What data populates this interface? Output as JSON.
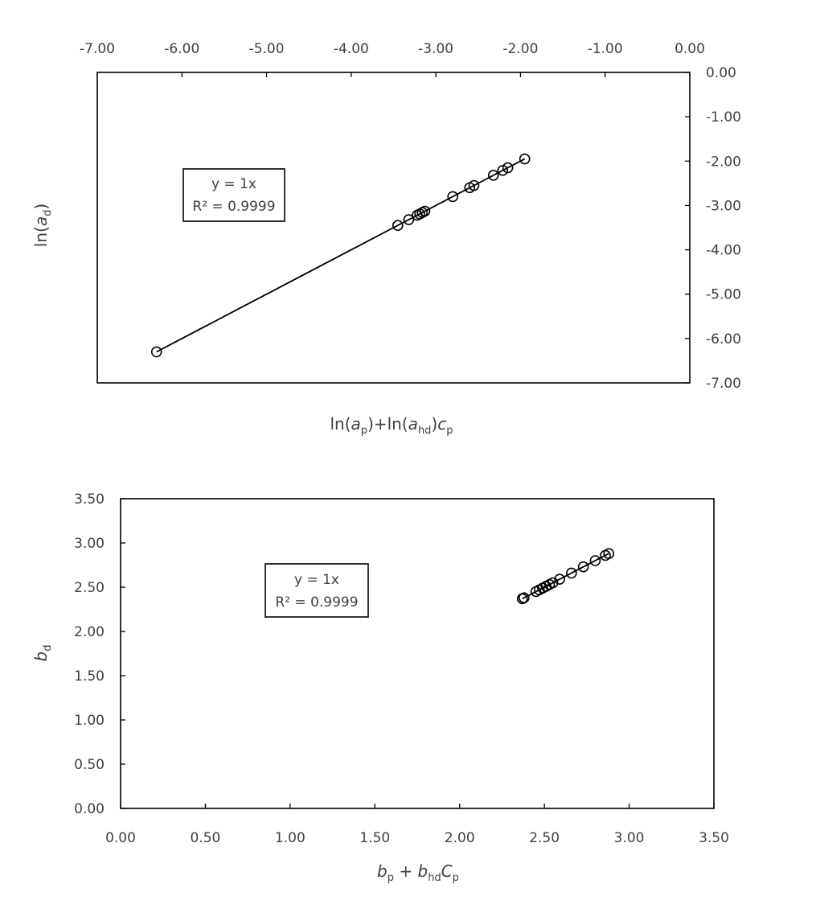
{
  "chart_data": [
    {
      "type": "scatter",
      "title": "",
      "xlabel": "ln(ap)+ln(ahd)cp",
      "xlabel_parts": {
        "a1": "ln(",
        "a1v": "a",
        "a1s": "p",
        "a2": ")+ln(",
        "a2v": "a",
        "a2s": "hd",
        "a3": ")",
        "a3v": "c",
        "a3s": "p"
      },
      "ylabel": "ln(ad)",
      "ylabel_parts": {
        "p1": "ln(",
        "v": "a",
        "s": "d",
        "p2": ")"
      },
      "xlim": [
        -7,
        0
      ],
      "ylim": [
        -7,
        0
      ],
      "x_axis_position": "top",
      "y_axis_position": "right",
      "x_ticks": [
        "-7.00",
        "-6.00",
        "-5.00",
        "-4.00",
        "-3.00",
        "-2.00",
        "-1.00",
        "0.00"
      ],
      "y_ticks": [
        "0.00",
        "-1.00",
        "-2.00",
        "-3.00",
        "-4.00",
        "-5.00",
        "-6.00",
        "-7.00"
      ],
      "grid": false,
      "trendline": {
        "slope": 1,
        "intercept": 0,
        "equation": "y = 1x",
        "r2_label": "R² = 0.9999"
      },
      "series": [
        {
          "x": [
            -6.3,
            -3.45,
            -3.32,
            -3.22,
            -3.19,
            -3.16,
            -3.13,
            -2.8,
            -2.6,
            -2.55,
            -2.32,
            -2.21,
            -2.15,
            -1.95
          ],
          "y": [
            -6.3,
            -3.45,
            -3.32,
            -3.22,
            -3.19,
            -3.16,
            -3.13,
            -2.8,
            -2.6,
            -2.55,
            -2.32,
            -2.21,
            -2.15,
            -1.95
          ]
        }
      ]
    },
    {
      "type": "scatter",
      "title": "",
      "xlabel": "bp + bhdCp",
      "xlabel_parts": {
        "v1": "b",
        "s1": "p",
        "mid": " + ",
        "v2": "b",
        "s2": "hd",
        "v3": "C",
        "s3": "p"
      },
      "ylabel": "bd",
      "ylabel_parts": {
        "v": "b",
        "s": "d"
      },
      "xlim": [
        0,
        3.5
      ],
      "ylim": [
        0,
        3.5
      ],
      "x_ticks": [
        "0.00",
        "0.50",
        "1.00",
        "1.50",
        "2.00",
        "2.50",
        "3.00",
        "3.50"
      ],
      "y_ticks": [
        "0.00",
        "0.50",
        "1.00",
        "1.50",
        "2.00",
        "2.50",
        "3.00",
        "3.50"
      ],
      "grid": false,
      "trendline": {
        "slope": 1,
        "intercept": 0,
        "equation": "y = 1x",
        "r2_label": "R² = 0.9999"
      },
      "series": [
        {
          "x": [
            2.37,
            2.38,
            2.45,
            2.47,
            2.49,
            2.51,
            2.53,
            2.55,
            2.59,
            2.66,
            2.73,
            2.8,
            2.86,
            2.88
          ],
          "y": [
            2.37,
            2.38,
            2.45,
            2.47,
            2.49,
            2.51,
            2.53,
            2.55,
            2.59,
            2.66,
            2.73,
            2.8,
            2.86,
            2.88
          ]
        }
      ]
    }
  ]
}
